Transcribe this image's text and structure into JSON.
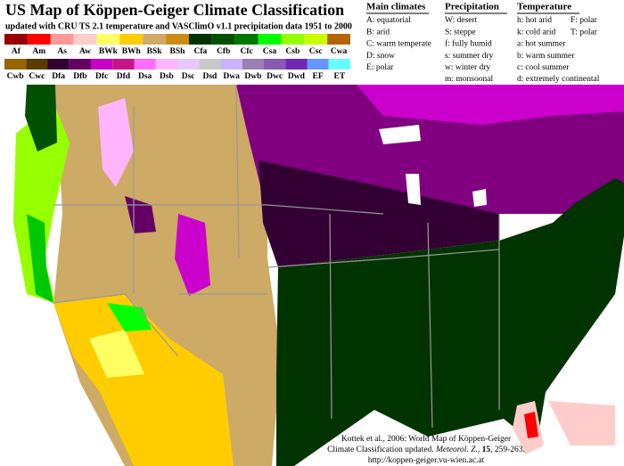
{
  "header": {
    "title": "US Map of Köppen-Geiger Climate Classification",
    "subtitle": "updated with CRU TS 2.1 temperature and VASClimO v1.1 precipitation data 1951 to 2000"
  },
  "legend": {
    "rows": [
      [
        {
          "label": "Af",
          "color": "#960000"
        },
        {
          "label": "Am",
          "color": "#ff0000"
        },
        {
          "label": "As",
          "color": "#ff9999"
        },
        {
          "label": "Aw",
          "color": "#ffcccc"
        },
        {
          "label": "BWk",
          "color": "#ffff64"
        },
        {
          "label": "BWh",
          "color": "#ffcc00"
        },
        {
          "label": "BSk",
          "color": "#cdaa66"
        },
        {
          "label": "BSh",
          "color": "#cc8c14"
        },
        {
          "label": "Cfa",
          "color": "#003300"
        },
        {
          "label": "Cfb",
          "color": "#005000"
        },
        {
          "label": "Cfc",
          "color": "#007800"
        },
        {
          "label": "Csa",
          "color": "#00ff00"
        },
        {
          "label": "Csb",
          "color": "#96ff00"
        },
        {
          "label": "Csc",
          "color": "#c8ff00"
        },
        {
          "label": "Cwa",
          "color": "#b46400"
        }
      ],
      [
        {
          "label": "Cwb",
          "color": "#966400"
        },
        {
          "label": "Cwc",
          "color": "#5a3c00"
        },
        {
          "label": "Dfa",
          "color": "#320032"
        },
        {
          "label": "Dfb",
          "color": "#640064"
        },
        {
          "label": "Dfc",
          "color": "#c800c8"
        },
        {
          "label": "Dfd",
          "color": "#c71585"
        },
        {
          "label": "Dsa",
          "color": "#ff6dff"
        },
        {
          "label": "Dsb",
          "color": "#ffb4ff"
        },
        {
          "label": "Dsc",
          "color": "#e6c8ff"
        },
        {
          "label": "Dsd",
          "color": "#c8c8c8"
        },
        {
          "label": "Dwa",
          "color": "#c8b4ff"
        },
        {
          "label": "Dwb",
          "color": "#9a7fb3"
        },
        {
          "label": "Dwc",
          "color": "#8859b3"
        },
        {
          "label": "Dwd",
          "color": "#6e28b4"
        },
        {
          "label": "EF",
          "color": "#6496ff"
        },
        {
          "label": "ET",
          "color": "#64ffff"
        }
      ]
    ]
  },
  "key": [
    {
      "heading": "Main climates",
      "items": [
        "A: equatorial",
        "B: arid",
        "C: warm temperate",
        "D: snow",
        "E: polar"
      ]
    },
    {
      "heading": "Precipitation",
      "items": [
        "W: desert",
        "S: steppe",
        "f: fully humid",
        "s: summer dry",
        "w: winter dry",
        "m: monsoonal"
      ]
    },
    {
      "heading": "Temperature",
      "items": [
        "h: hot arid",
        "k: cold arid",
        "a: hot summer",
        "b: warm summer",
        "c: cool summer",
        "d: extremely continental"
      ],
      "extra": [
        "F: polar",
        "T: polar"
      ]
    }
  ],
  "citation": {
    "line1": "Kottek et al., 2006: World Map of Köppen-Geiger",
    "line2": [
      "Climate Classification updated. ",
      "Meteorol. Z.",
      ", ",
      "15",
      ", 259-263."
    ],
    "line3": "http://koppen-geiger.vu-wien.ac.at"
  }
}
